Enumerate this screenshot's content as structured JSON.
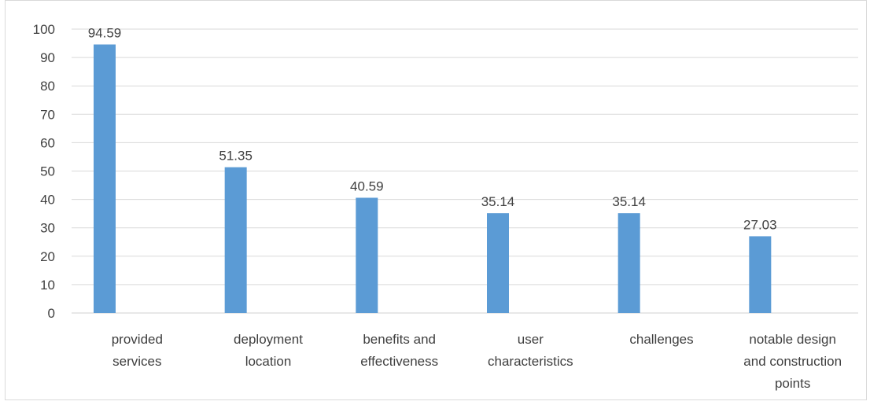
{
  "chart_data": {
    "type": "bar",
    "title": "",
    "xlabel": "",
    "ylabel": "",
    "categories": [
      [
        "provided",
        "services"
      ],
      [
        "deployment",
        "location"
      ],
      [
        "benefits and",
        "effectiveness"
      ],
      [
        "user",
        "characteristics"
      ],
      [
        "challenges"
      ],
      [
        "notable design",
        "and construction",
        "points"
      ]
    ],
    "values": [
      94.59,
      51.35,
      40.59,
      35.14,
      35.14,
      27.03
    ],
    "value_labels": [
      "94.59",
      "51.35",
      "40.59",
      "35.14",
      "35.14",
      "27.03"
    ],
    "ylim": [
      0,
      100
    ],
    "yticks": [
      0,
      10,
      20,
      30,
      40,
      50,
      60,
      70,
      80,
      90,
      100
    ],
    "grid": true,
    "bar_color": "#5b9bd5",
    "grid_color": "#d9d9d9",
    "text_color": "#404040"
  }
}
